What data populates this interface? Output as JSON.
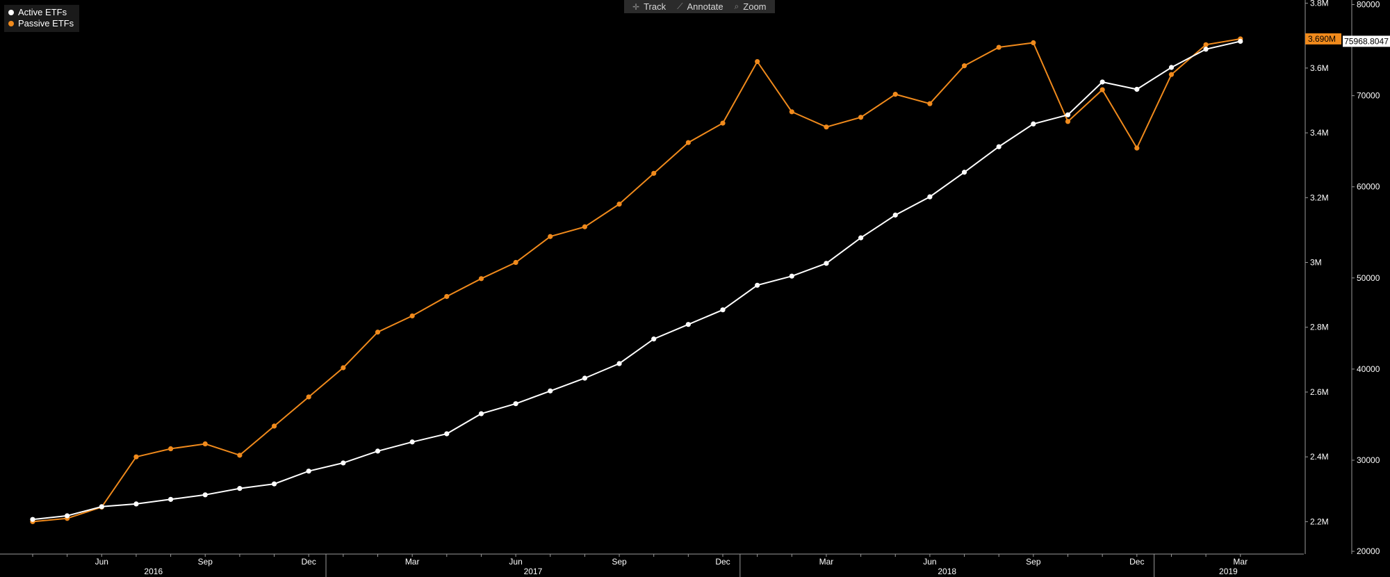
{
  "toolbar": {
    "track_label": "Track",
    "annotate_label": "Annotate",
    "zoom_label": "Zoom"
  },
  "colors": {
    "background": "#000000",
    "active": "#ffffff",
    "passive": "#f08a1c",
    "axis": "#9a9a9a"
  },
  "chart_data": {
    "type": "line",
    "title": "",
    "x_months": [
      "Apr 2016",
      "May 2016",
      "Jun 2016",
      "Jul 2016",
      "Aug 2016",
      "Sep 2016",
      "Oct 2016",
      "Nov 2016",
      "Dec 2016",
      "Jan 2017",
      "Feb 2017",
      "Mar 2017",
      "Apr 2017",
      "May 2017",
      "Jun 2017",
      "Jul 2017",
      "Aug 2017",
      "Sep 2017",
      "Oct 2017",
      "Nov 2017",
      "Dec 2017",
      "Jan 2018",
      "Feb 2018",
      "Mar 2018",
      "Apr 2018",
      "May 2018",
      "Jun 2018",
      "Jul 2018",
      "Aug 2018",
      "Sep 2018",
      "Oct 2018",
      "Nov 2018",
      "Dec 2018",
      "Jan 2019",
      "Feb 2019",
      "Mar 2019"
    ],
    "x_tick_labels": [
      "Jun",
      "Sep",
      "Dec",
      "Mar",
      "Jun",
      "Sep",
      "Dec",
      "Mar",
      "Jun",
      "Sep",
      "Dec",
      "Mar"
    ],
    "x_tick_months": [
      "Jun 2016",
      "Sep 2016",
      "Dec 2016",
      "Mar 2017",
      "Jun 2017",
      "Sep 2017",
      "Dec 2017",
      "Mar 2018",
      "Jun 2018",
      "Sep 2018",
      "Dec 2018",
      "Mar 2019"
    ],
    "year_labels": [
      "2016",
      "2017",
      "2018",
      "2019"
    ],
    "series": [
      {
        "name": "Active ETFs",
        "axis": "right-outer",
        "values": [
          23500,
          23900,
          24900,
          25200,
          25700,
          26200,
          26900,
          27400,
          28800,
          29700,
          31000,
          32000,
          32900,
          35100,
          36200,
          37600,
          39000,
          40600,
          43300,
          44900,
          46500,
          49200,
          50200,
          51600,
          54400,
          56900,
          58900,
          61600,
          64400,
          66900,
          67900,
          71500,
          70700,
          73100,
          75100,
          75969
        ]
      },
      {
        "name": "Passive ETFs",
        "axis": "right-inner",
        "values": [
          2200000,
          2210000,
          2245000,
          2400000,
          2425000,
          2440000,
          2405000,
          2495000,
          2585000,
          2675000,
          2785000,
          2835000,
          2895000,
          2950000,
          3000000,
          3080000,
          3110000,
          3180000,
          3275000,
          3370000,
          3430000,
          3620000,
          3465000,
          3418000,
          3448000,
          3519000,
          3490000,
          3607000,
          3664000,
          3678000,
          3435000,
          3533000,
          3353000,
          3580000,
          3672000,
          3690000
        ]
      }
    ],
    "y_inner": {
      "ticks": [
        2200000,
        2400000,
        2600000,
        2800000,
        3000000,
        3200000,
        3400000,
        3600000,
        3800000
      ],
      "tick_labels": [
        "2.2M",
        "2.4M",
        "2.6M",
        "2.8M",
        "3M",
        "3.2M",
        "3.4M",
        "3.6M",
        "3.8M"
      ],
      "range": [
        2100000,
        3810000
      ]
    },
    "y_outer": {
      "ticks": [
        20000,
        30000,
        40000,
        50000,
        60000,
        70000,
        80000
      ],
      "tick_labels": [
        "20000",
        "30000",
        "40000",
        "50000",
        "60000",
        "70000",
        "80000"
      ],
      "range": [
        19700,
        80500
      ]
    },
    "last_value_badges": {
      "passive": "3.690M",
      "active": "75968.8047"
    },
    "legend_position": "top-left",
    "grid": false
  }
}
